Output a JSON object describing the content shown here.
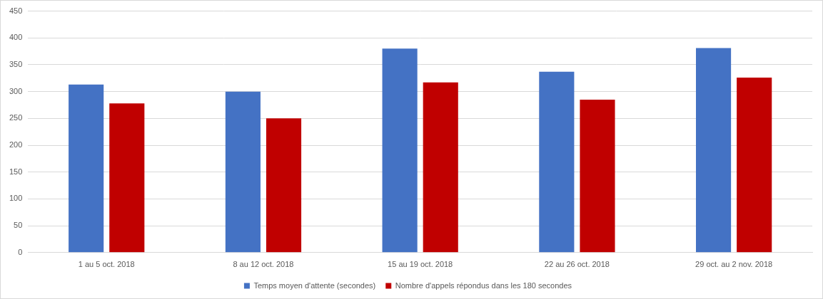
{
  "chart_data": {
    "type": "bar",
    "categories": [
      "1 au 5 oct. 2018",
      "8 au 12 oct. 2018",
      "15 au 19 oct. 2018",
      "22 au 26 oct. 2018",
      "29 oct. au 2 nov. 2018"
    ],
    "series": [
      {
        "name": "Temps moyen d'attente (secondes)",
        "color": "#4472c4",
        "values": [
          313,
          300,
          380,
          337,
          381
        ]
      },
      {
        "name": "Nombre d'appels répondus dans les 180 secondes",
        "color": "#c00000",
        "values": [
          278,
          250,
          317,
          285,
          326
        ]
      }
    ],
    "ylim": [
      0,
      450
    ],
    "yticks": [
      0,
      50,
      100,
      150,
      200,
      250,
      300,
      350,
      400,
      450
    ],
    "grid": true,
    "legend": "bottom"
  }
}
